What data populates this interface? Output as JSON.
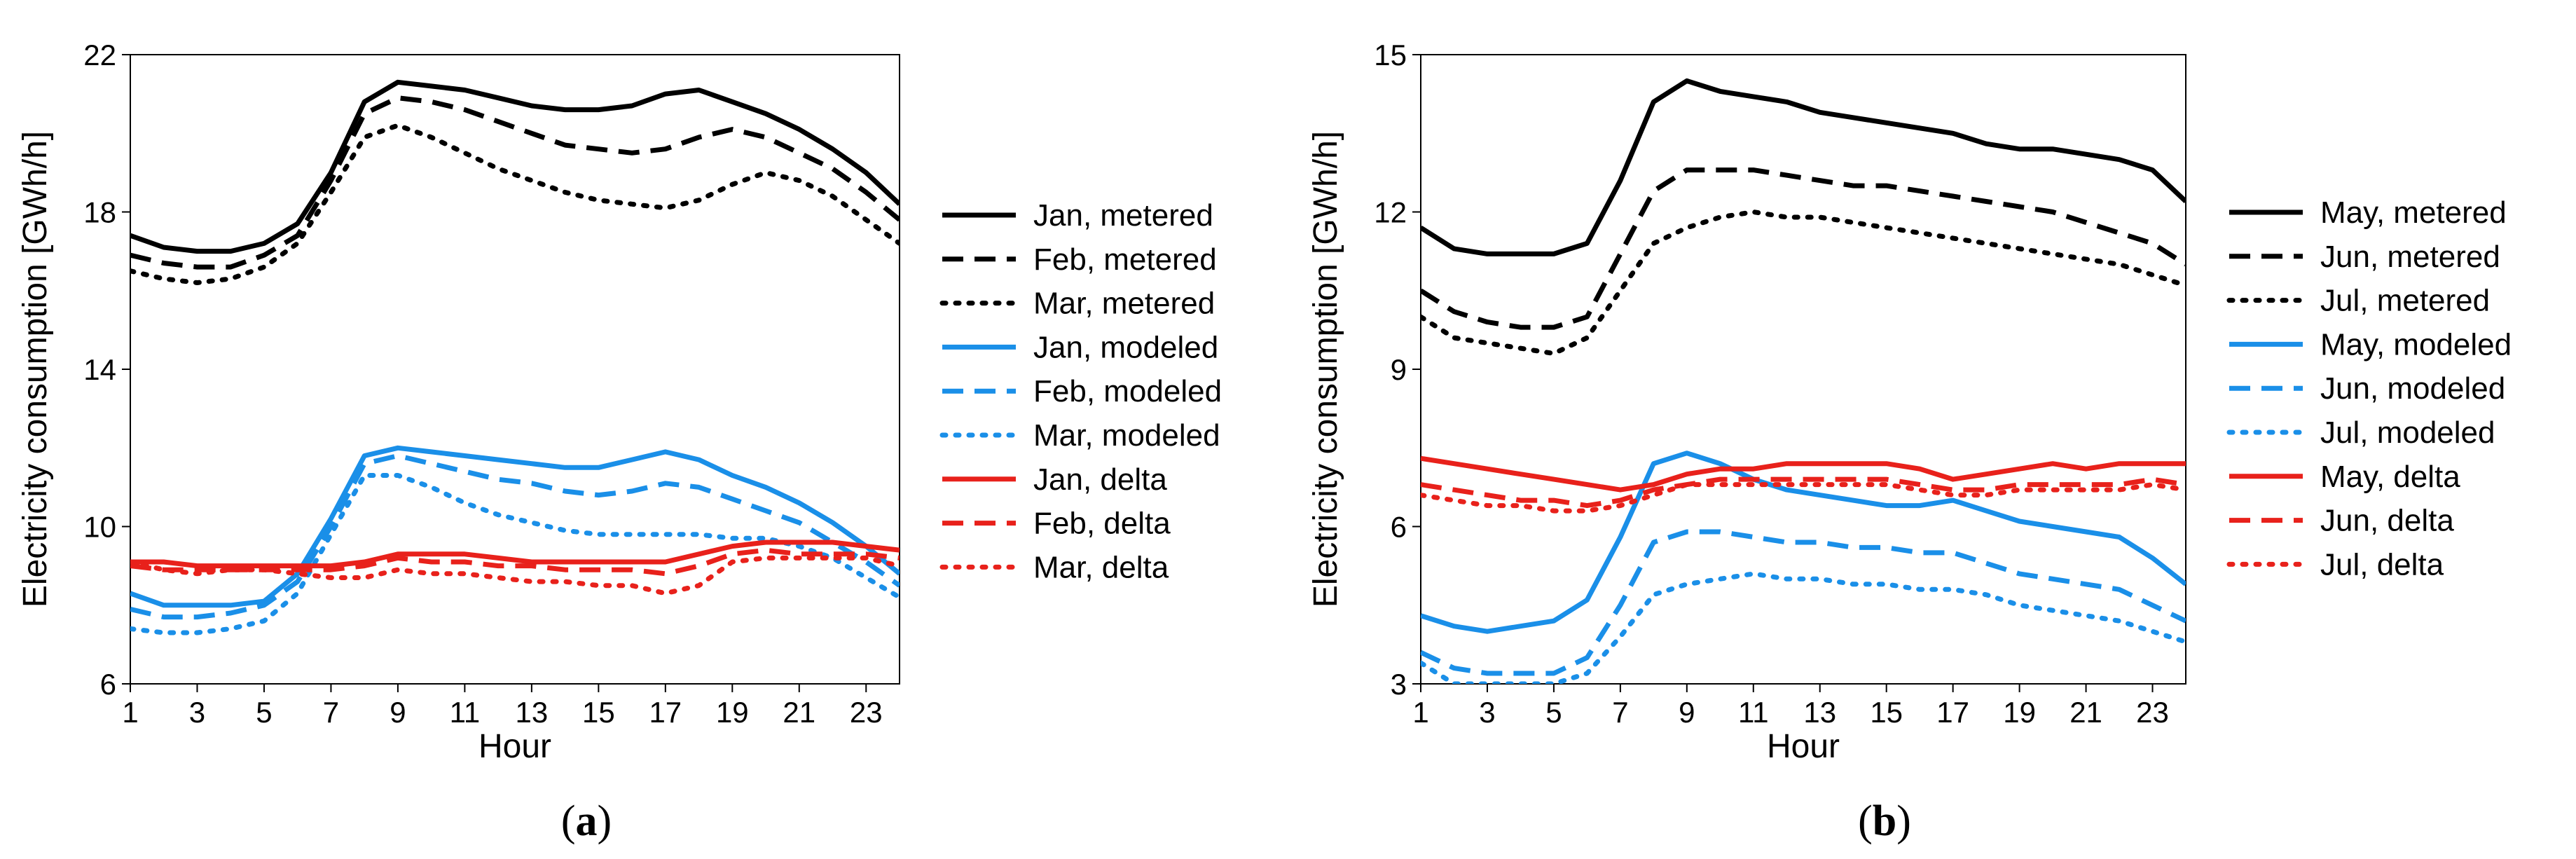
{
  "chart_data": [
    {
      "type": "line",
      "panel_label": {
        "open": "(",
        "letter": "a",
        "close": ")"
      },
      "xlabel": "Hour",
      "ylabel": "Electricity consumption [GWh/h]",
      "xlim": [
        1,
        24
      ],
      "ylim": [
        6,
        22
      ],
      "xticks": [
        1,
        3,
        5,
        7,
        9,
        11,
        13,
        15,
        17,
        19,
        21,
        23
      ],
      "yticks": [
        6,
        10,
        14,
        18,
        22
      ],
      "grid": false,
      "legend_position": "right",
      "x": [
        1,
        2,
        3,
        4,
        5,
        6,
        7,
        8,
        9,
        10,
        11,
        12,
        13,
        14,
        15,
        16,
        17,
        18,
        19,
        20,
        21,
        22,
        23,
        24
      ],
      "series": [
        {
          "name": "Jan, metered",
          "color": "#000000",
          "style": "solid",
          "values": [
            17.4,
            17.1,
            17.0,
            17.0,
            17.2,
            17.7,
            19.0,
            20.8,
            21.3,
            21.2,
            21.1,
            20.9,
            20.7,
            20.6,
            20.6,
            20.7,
            21.0,
            21.1,
            20.8,
            20.5,
            20.1,
            19.6,
            19.0,
            18.2
          ]
        },
        {
          "name": "Feb, metered",
          "color": "#000000",
          "style": "dashed",
          "values": [
            16.9,
            16.7,
            16.6,
            16.6,
            16.9,
            17.4,
            18.8,
            20.5,
            20.9,
            20.8,
            20.6,
            20.3,
            20.0,
            19.7,
            19.6,
            19.5,
            19.6,
            19.9,
            20.1,
            19.9,
            19.5,
            19.1,
            18.5,
            17.8
          ]
        },
        {
          "name": "Mar, metered",
          "color": "#000000",
          "style": "dotted",
          "values": [
            16.5,
            16.3,
            16.2,
            16.3,
            16.6,
            17.2,
            18.5,
            19.9,
            20.2,
            19.9,
            19.5,
            19.1,
            18.8,
            18.5,
            18.3,
            18.2,
            18.1,
            18.3,
            18.7,
            19.0,
            18.8,
            18.4,
            17.8,
            17.2
          ]
        },
        {
          "name": "Jan, modeled",
          "color": "#1a8fe8",
          "style": "solid",
          "values": [
            8.3,
            8.0,
            8.0,
            8.0,
            8.1,
            8.8,
            10.2,
            11.8,
            12.0,
            11.9,
            11.8,
            11.7,
            11.6,
            11.5,
            11.5,
            11.7,
            11.9,
            11.7,
            11.3,
            11.0,
            10.6,
            10.1,
            9.5,
            8.8
          ]
        },
        {
          "name": "Feb, modeled",
          "color": "#1a8fe8",
          "style": "dashed",
          "values": [
            7.9,
            7.7,
            7.7,
            7.8,
            8.0,
            8.6,
            10.0,
            11.6,
            11.8,
            11.6,
            11.4,
            11.2,
            11.1,
            10.9,
            10.8,
            10.9,
            11.1,
            11.0,
            10.7,
            10.4,
            10.1,
            9.6,
            9.1,
            8.5
          ]
        },
        {
          "name": "Mar, modeled",
          "color": "#1a8fe8",
          "style": "dotted",
          "values": [
            7.4,
            7.3,
            7.3,
            7.4,
            7.6,
            8.3,
            9.8,
            11.3,
            11.3,
            11.0,
            10.6,
            10.3,
            10.1,
            9.9,
            9.8,
            9.8,
            9.8,
            9.8,
            9.7,
            9.7,
            9.5,
            9.2,
            8.7,
            8.2
          ]
        },
        {
          "name": "Jan, delta",
          "color": "#e8211b",
          "style": "solid",
          "values": [
            9.1,
            9.1,
            9.0,
            9.0,
            9.0,
            9.0,
            9.0,
            9.1,
            9.3,
            9.3,
            9.3,
            9.2,
            9.1,
            9.1,
            9.1,
            9.1,
            9.1,
            9.3,
            9.5,
            9.6,
            9.6,
            9.6,
            9.5,
            9.4
          ]
        },
        {
          "name": "Feb, delta",
          "color": "#e8211b",
          "style": "dashed",
          "values": [
            9.0,
            8.9,
            8.9,
            8.9,
            8.9,
            8.9,
            8.9,
            9.0,
            9.2,
            9.1,
            9.1,
            9.0,
            9.0,
            8.9,
            8.9,
            8.9,
            8.8,
            9.0,
            9.3,
            9.4,
            9.3,
            9.3,
            9.3,
            9.2
          ]
        },
        {
          "name": "Mar, delta",
          "color": "#e8211b",
          "style": "dotted",
          "values": [
            9.1,
            8.9,
            8.8,
            8.9,
            8.9,
            8.8,
            8.7,
            8.7,
            8.9,
            8.8,
            8.8,
            8.7,
            8.6,
            8.6,
            8.5,
            8.5,
            8.3,
            8.5,
            9.1,
            9.2,
            9.2,
            9.2,
            9.2,
            9.0
          ]
        }
      ]
    },
    {
      "type": "line",
      "panel_label": {
        "open": "(",
        "letter": "b",
        "close": ")"
      },
      "xlabel": "Hour",
      "ylabel": "Electricity consumption [GWh/h]",
      "xlim": [
        1,
        24
      ],
      "ylim": [
        3,
        15
      ],
      "xticks": [
        1,
        3,
        5,
        7,
        9,
        11,
        13,
        15,
        17,
        19,
        21,
        23
      ],
      "yticks": [
        3,
        6,
        9,
        12,
        15
      ],
      "grid": false,
      "legend_position": "right",
      "x": [
        1,
        2,
        3,
        4,
        5,
        6,
        7,
        8,
        9,
        10,
        11,
        12,
        13,
        14,
        15,
        16,
        17,
        18,
        19,
        20,
        21,
        22,
        23,
        24
      ],
      "series": [
        {
          "name": "May, metered",
          "color": "#000000",
          "style": "solid",
          "values": [
            11.7,
            11.3,
            11.2,
            11.2,
            11.2,
            11.4,
            12.6,
            14.1,
            14.5,
            14.3,
            14.2,
            14.1,
            13.9,
            13.8,
            13.7,
            13.6,
            13.5,
            13.3,
            13.2,
            13.2,
            13.1,
            13.0,
            12.8,
            12.2
          ]
        },
        {
          "name": "Jun, metered",
          "color": "#000000",
          "style": "dashed",
          "values": [
            10.5,
            10.1,
            9.9,
            9.8,
            9.8,
            10.0,
            11.2,
            12.4,
            12.8,
            12.8,
            12.8,
            12.7,
            12.6,
            12.5,
            12.5,
            12.4,
            12.3,
            12.2,
            12.1,
            12.0,
            11.8,
            11.6,
            11.4,
            11.0
          ]
        },
        {
          "name": "Jul, metered",
          "color": "#000000",
          "style": "dotted",
          "values": [
            10.0,
            9.6,
            9.5,
            9.4,
            9.3,
            9.6,
            10.5,
            11.4,
            11.7,
            11.9,
            12.0,
            11.9,
            11.9,
            11.8,
            11.7,
            11.6,
            11.5,
            11.4,
            11.3,
            11.2,
            11.1,
            11.0,
            10.8,
            10.6
          ]
        },
        {
          "name": "May, modeled",
          "color": "#1a8fe8",
          "style": "solid",
          "values": [
            4.3,
            4.1,
            4.0,
            4.1,
            4.2,
            4.6,
            5.8,
            7.2,
            7.4,
            7.2,
            6.9,
            6.7,
            6.6,
            6.5,
            6.4,
            6.4,
            6.5,
            6.3,
            6.1,
            6.0,
            5.9,
            5.8,
            5.4,
            4.9
          ]
        },
        {
          "name": "Jun, modeled",
          "color": "#1a8fe8",
          "style": "dashed",
          "values": [
            3.6,
            3.3,
            3.2,
            3.2,
            3.2,
            3.5,
            4.5,
            5.7,
            5.9,
            5.9,
            5.8,
            5.7,
            5.7,
            5.6,
            5.6,
            5.5,
            5.5,
            5.3,
            5.1,
            5.0,
            4.9,
            4.8,
            4.5,
            4.2
          ]
        },
        {
          "name": "Jul, modeled",
          "color": "#1a8fe8",
          "style": "dotted",
          "values": [
            3.4,
            3.0,
            3.0,
            3.0,
            3.0,
            3.2,
            3.9,
            4.7,
            4.9,
            5.0,
            5.1,
            5.0,
            5.0,
            4.9,
            4.9,
            4.8,
            4.8,
            4.7,
            4.5,
            4.4,
            4.3,
            4.2,
            4.0,
            3.8
          ]
        },
        {
          "name": "May, delta",
          "color": "#e8211b",
          "style": "solid",
          "values": [
            7.3,
            7.2,
            7.1,
            7.0,
            6.9,
            6.8,
            6.7,
            6.8,
            7.0,
            7.1,
            7.1,
            7.2,
            7.2,
            7.2,
            7.2,
            7.1,
            6.9,
            7.0,
            7.1,
            7.2,
            7.1,
            7.2,
            7.2,
            7.2
          ]
        },
        {
          "name": "Jun, delta",
          "color": "#e8211b",
          "style": "dashed",
          "values": [
            6.8,
            6.7,
            6.6,
            6.5,
            6.5,
            6.4,
            6.5,
            6.7,
            6.8,
            6.9,
            6.9,
            6.9,
            6.9,
            6.9,
            6.9,
            6.8,
            6.7,
            6.7,
            6.8,
            6.8,
            6.8,
            6.8,
            6.9,
            6.8
          ]
        },
        {
          "name": "Jul, delta",
          "color": "#e8211b",
          "style": "dotted",
          "values": [
            6.6,
            6.5,
            6.4,
            6.4,
            6.3,
            6.3,
            6.4,
            6.6,
            6.8,
            6.8,
            6.8,
            6.8,
            6.8,
            6.8,
            6.8,
            6.7,
            6.6,
            6.6,
            6.7,
            6.7,
            6.7,
            6.7,
            6.8,
            6.7
          ]
        }
      ]
    }
  ]
}
